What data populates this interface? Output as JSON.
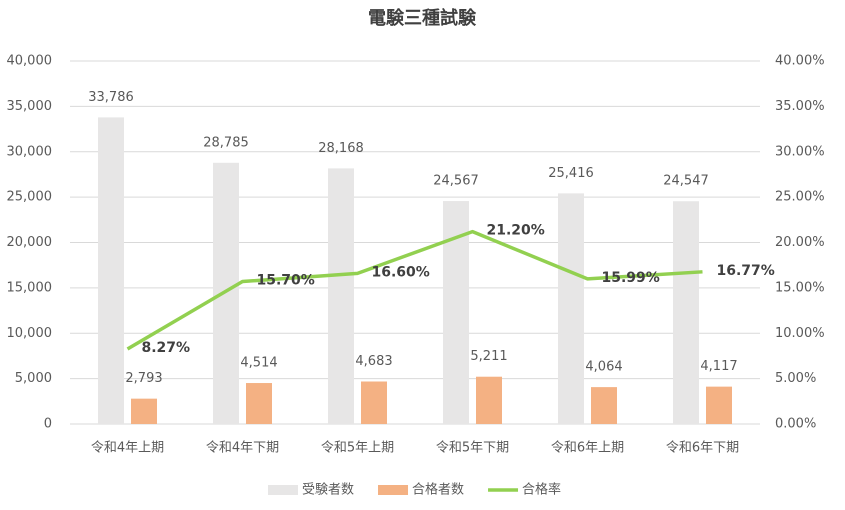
{
  "chart_data": {
    "type": "combo",
    "title": "電験三種試験",
    "categories": [
      "令和4年上期",
      "令和4年下期",
      "令和5年上期",
      "令和5年下期",
      "令和6年上期",
      "令和6年下期"
    ],
    "series": [
      {
        "name": "受験者数",
        "type": "bar",
        "color": "#e7e6e6",
        "values": [
          33786,
          28785,
          28168,
          24567,
          25416,
          24547
        ],
        "value_labels": [
          "33,786",
          "28,785",
          "28,168",
          "24,567",
          "25,416",
          "24,547"
        ]
      },
      {
        "name": "合格者数",
        "type": "bar",
        "color": "#f4b183",
        "values": [
          2793,
          4514,
          4683,
          5211,
          4064,
          4117
        ],
        "value_labels": [
          "2,793",
          "4,514",
          "4,683",
          "5,211",
          "4,064",
          "4,117"
        ]
      },
      {
        "name": "合格率",
        "type": "line",
        "axis": "y2",
        "color": "#92d050",
        "values": [
          8.27,
          15.7,
          16.6,
          21.2,
          15.99,
          16.77
        ],
        "value_labels": [
          "8.27%",
          "15.70%",
          "16.60%",
          "21.20%",
          "15.99%",
          "16.77%"
        ]
      }
    ],
    "ylim": [
      0,
      40000
    ],
    "yticks": [
      0,
      {
        "value": 5000,
        "label": "5,000"
      },
      {
        "value": 10000,
        "label": "10,000"
      },
      {
        "value": 15000,
        "label": "15,000"
      },
      {
        "value": 20000,
        "label": "20,000"
      },
      {
        "value": 25000,
        "label": "25,000"
      },
      {
        "value": 30000,
        "label": "30,000"
      },
      {
        "value": 35000,
        "label": "35,000"
      },
      {
        "value": 40000,
        "label": "40,000"
      }
    ],
    "y2lim": [
      0,
      40
    ],
    "y2ticks": [
      {
        "value": 0,
        "label": "0.00%"
      },
      {
        "value": 5,
        "label": "5.00%"
      },
      {
        "value": 10,
        "label": "10.00%"
      },
      {
        "value": 15,
        "label": "15.00%"
      },
      {
        "value": 20,
        "label": "20.00%"
      },
      {
        "value": 25,
        "label": "25.00%"
      },
      {
        "value": 30,
        "label": "30.00%"
      },
      {
        "value": 35,
        "label": "35.00%"
      },
      {
        "value": 40,
        "label": "40.00%"
      }
    ],
    "grid": true,
    "legend": "bottom"
  }
}
